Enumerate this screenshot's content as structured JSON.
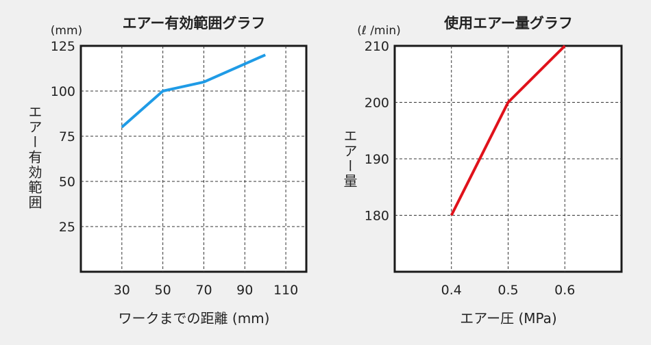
{
  "chart_data": [
    {
      "type": "line",
      "title": "エアー有効範囲グラフ",
      "xlabel": "ワークまでの距離 (mm)",
      "ylabel": "エアー有効範囲",
      "yunit": "(mm)",
      "xticks": [
        "30",
        "50",
        "70",
        "90",
        "110"
      ],
      "yticks": [
        "25",
        "50",
        "75",
        "100",
        "125"
      ],
      "xlim": [
        10,
        120
      ],
      "ylim": [
        0,
        125
      ],
      "grid": true,
      "color": "#1f9be6",
      "series": [
        {
          "x": [
            30,
            50,
            70,
            100
          ],
          "y": [
            80,
            100,
            105,
            120
          ]
        }
      ]
    },
    {
      "type": "line",
      "title": "使用エアー量グラフ",
      "xlabel": "エアー圧 (MPa)",
      "ylabel": "エアー量",
      "yunit": "(ℓ /min)",
      "xticks": [
        "0.4",
        "0.5",
        "0.6"
      ],
      "yticks": [
        "180",
        "190",
        "200",
        "210"
      ],
      "xlim": [
        0.3,
        0.7
      ],
      "ylim": [
        170,
        210
      ],
      "grid": true,
      "color": "#e0121b",
      "series": [
        {
          "x": [
            0.4,
            0.5,
            0.6
          ],
          "y": [
            180,
            200,
            210
          ]
        }
      ]
    }
  ]
}
